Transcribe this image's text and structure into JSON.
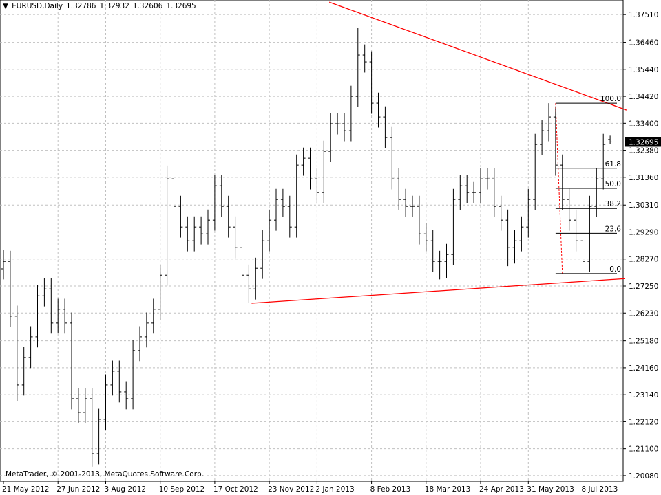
{
  "chart_data": {
    "type": "ohlc",
    "symbol": "EURUSD,Daily",
    "categories": [
      "21 May 2012",
      null,
      null,
      null,
      null,
      null,
      null,
      null,
      "27 Jun 2012",
      null,
      null,
      null,
      null,
      null,
      null,
      "3 Aug 2012",
      null,
      null,
      null,
      null,
      null,
      null,
      null,
      "10 Sep 2012",
      null,
      null,
      null,
      null,
      null,
      null,
      null,
      "17 Oct 2012",
      null,
      null,
      null,
      null,
      null,
      null,
      null,
      "23 Nov 2012",
      null,
      null,
      null,
      null,
      null,
      null,
      "2 Jan 2013",
      null,
      null,
      null,
      null,
      null,
      null,
      null,
      "8 Feb 2013",
      null,
      null,
      null,
      null,
      null,
      null,
      null,
      "18 Mar 2013",
      null,
      null,
      null,
      null,
      null,
      null,
      null,
      "24 Apr 2013",
      null,
      null,
      null,
      null,
      null,
      null,
      "31 May 2013",
      null,
      null,
      null,
      null,
      null,
      null,
      null,
      "8 Jul 2013",
      null,
      null,
      null,
      null
    ],
    "bars": [
      [
        1.279,
        1.286,
        1.275,
        1.2818
      ],
      [
        1.2818,
        1.2858,
        1.2571,
        1.2611
      ],
      [
        1.2611,
        1.2651,
        1.229,
        1.2351
      ],
      [
        1.2351,
        1.2495,
        1.2311,
        1.2455
      ],
      [
        1.2455,
        1.2573,
        1.2415,
        1.2533
      ],
      [
        1.2533,
        1.2728,
        1.2493,
        1.2688
      ],
      [
        1.2688,
        1.2754,
        1.2648,
        1.2714
      ],
      [
        1.2714,
        1.2754,
        1.2545,
        1.2585
      ],
      [
        1.2585,
        1.2677,
        1.2545,
        1.2637
      ],
      [
        1.2637,
        1.2677,
        1.2545,
        1.2585
      ],
      [
        1.2585,
        1.2625,
        1.2259,
        1.2299
      ],
      [
        1.2299,
        1.2339,
        1.2207,
        1.2247
      ],
      [
        1.2247,
        1.2339,
        1.2207,
        1.2299
      ],
      [
        1.2299,
        1.2339,
        1.2042,
        1.2091
      ],
      [
        1.2091,
        1.2261,
        1.2051,
        1.2221
      ],
      [
        1.2221,
        1.2391,
        1.2181,
        1.2351
      ],
      [
        1.2351,
        1.2443,
        1.2311,
        1.2403
      ],
      [
        1.2403,
        1.2443,
        1.2285,
        1.2325
      ],
      [
        1.2325,
        1.2365,
        1.2259,
        1.2299
      ],
      [
        1.2299,
        1.2521,
        1.2259,
        1.2481
      ],
      [
        1.2481,
        1.2573,
        1.2441,
        1.2533
      ],
      [
        1.2533,
        1.2625,
        1.2493,
        1.2585
      ],
      [
        1.2585,
        1.2677,
        1.2545,
        1.2637
      ],
      [
        1.2637,
        1.2806,
        1.2597,
        1.2766
      ],
      [
        1.2766,
        1.318,
        1.2726,
        1.313
      ],
      [
        1.313,
        1.317,
        1.2986,
        1.3026
      ],
      [
        1.3026,
        1.3066,
        1.2908,
        1.2948
      ],
      [
        1.2948,
        1.2988,
        1.2856,
        1.2896
      ],
      [
        1.2896,
        1.2988,
        1.2856,
        1.2948
      ],
      [
        1.2948,
        1.2988,
        1.2882,
        1.2922
      ],
      [
        1.2922,
        1.3014,
        1.2882,
        1.2974
      ],
      [
        1.2974,
        1.3144,
        1.2934,
        1.3104
      ],
      [
        1.3104,
        1.3144,
        1.2986,
        1.3026
      ],
      [
        1.3026,
        1.3066,
        1.2908,
        1.2948
      ],
      [
        1.2948,
        1.2988,
        1.283,
        1.287
      ],
      [
        1.287,
        1.291,
        1.2726,
        1.2766
      ],
      [
        1.2766,
        1.2806,
        1.266,
        1.2714
      ],
      [
        1.2714,
        1.2832,
        1.2674,
        1.2792
      ],
      [
        1.2792,
        1.2936,
        1.2752,
        1.2896
      ],
      [
        1.2896,
        1.3014,
        1.2856,
        1.2974
      ],
      [
        1.2974,
        1.3092,
        1.2934,
        1.3052
      ],
      [
        1.3052,
        1.3092,
        1.2986,
        1.3026
      ],
      [
        1.3026,
        1.3066,
        1.2908,
        1.2948
      ],
      [
        1.2948,
        1.3222,
        1.2908,
        1.3182
      ],
      [
        1.3182,
        1.3248,
        1.3142,
        1.3208
      ],
      [
        1.3208,
        1.3248,
        1.309,
        1.313
      ],
      [
        1.313,
        1.317,
        1.3038,
        1.3078
      ],
      [
        1.3078,
        1.3274,
        1.3038,
        1.3234
      ],
      [
        1.3234,
        1.3378,
        1.3194,
        1.3338
      ],
      [
        1.3338,
        1.3378,
        1.3298,
        1.3338
      ],
      [
        1.3338,
        1.3378,
        1.3272,
        1.3312
      ],
      [
        1.3312,
        1.3482,
        1.3272,
        1.3442
      ],
      [
        1.3442,
        1.3702,
        1.3402,
        1.3598
      ],
      [
        1.3598,
        1.3638,
        1.3532,
        1.3572
      ],
      [
        1.3572,
        1.3612,
        1.3376,
        1.3416
      ],
      [
        1.3416,
        1.3456,
        1.3324,
        1.3364
      ],
      [
        1.3364,
        1.3404,
        1.3246,
        1.3286
      ],
      [
        1.3286,
        1.3326,
        1.309,
        1.313
      ],
      [
        1.313,
        1.317,
        1.3012,
        1.3052
      ],
      [
        1.3052,
        1.3092,
        1.2986,
        1.3026
      ],
      [
        1.3026,
        1.3066,
        1.2986,
        1.3026
      ],
      [
        1.3026,
        1.3066,
        1.2882,
        1.2922
      ],
      [
        1.2922,
        1.2962,
        1.2856,
        1.2896
      ],
      [
        1.2896,
        1.2936,
        1.2778,
        1.2818
      ],
      [
        1.2818,
        1.2858,
        1.275,
        1.2818
      ],
      [
        1.2818,
        1.2884,
        1.2755,
        1.2844
      ],
      [
        1.2844,
        1.3092,
        1.2804,
        1.3052
      ],
      [
        1.3052,
        1.3144,
        1.3012,
        1.3104
      ],
      [
        1.3104,
        1.3144,
        1.3038,
        1.3078
      ],
      [
        1.3078,
        1.3118,
        1.3038,
        1.3078
      ],
      [
        1.3078,
        1.317,
        1.3038,
        1.313
      ],
      [
        1.313,
        1.317,
        1.309,
        1.313
      ],
      [
        1.313,
        1.317,
        1.2986,
        1.3026
      ],
      [
        1.3026,
        1.3066,
        1.2934,
        1.2974
      ],
      [
        1.2974,
        1.3014,
        1.28,
        1.287
      ],
      [
        1.287,
        1.2936,
        1.281,
        1.2896
      ],
      [
        1.2896,
        1.2988,
        1.2856,
        1.2948
      ],
      [
        1.2948,
        1.3092,
        1.2908,
        1.3052
      ],
      [
        1.3052,
        1.33,
        1.3012,
        1.326
      ],
      [
        1.326,
        1.3352,
        1.322,
        1.3312
      ],
      [
        1.3312,
        1.3416,
        1.3272,
        1.3364
      ],
      [
        1.3364,
        1.3404,
        1.3142,
        1.3182
      ],
      [
        1.3182,
        1.3222,
        1.3012,
        1.3052
      ],
      [
        1.3052,
        1.3092,
        1.2934,
        1.2974
      ],
      [
        1.2974,
        1.3014,
        1.2856,
        1.2896
      ],
      [
        1.2896,
        1.2936,
        1.2766,
        1.2818
      ],
      [
        1.2818,
        1.3066,
        1.2778,
        1.3026
      ],
      [
        1.3026,
        1.317,
        1.2986,
        1.313
      ],
      [
        1.313,
        1.33,
        1.309,
        1.326
      ],
      [
        1.32786,
        1.32932,
        1.32606,
        1.32695
      ]
    ],
    "color": "#000000",
    "ylim": [
      1.1987,
      1.3806
    ],
    "yticks": [
      {
        "value": 1.3751,
        "label": "1.37510"
      },
      {
        "value": 1.3646,
        "label": "1.36460"
      },
      {
        "value": 1.3544,
        "label": "1.35440"
      },
      {
        "value": 1.3442,
        "label": "1.34420"
      },
      {
        "value": 1.334,
        "label": "1.33400"
      },
      {
        "value": 1.3238,
        "label": "1.32380"
      },
      {
        "value": 1.3136,
        "label": "1.31360"
      },
      {
        "value": 1.3031,
        "label": "1.30310"
      },
      {
        "value": 1.2929,
        "label": "1.29290"
      },
      {
        "value": 1.2827,
        "label": "1.28270"
      },
      {
        "value": 1.2725,
        "label": "1.27250"
      },
      {
        "value": 1.2623,
        "label": "1.26230"
      },
      {
        "value": 1.2518,
        "label": "1.25180"
      },
      {
        "value": 1.2416,
        "label": "1.24160"
      },
      {
        "value": 1.2314,
        "label": "1.23140"
      },
      {
        "value": 1.2212,
        "label": "1.22120"
      },
      {
        "value": 1.211,
        "label": "1.21100"
      },
      {
        "value": 1.2008,
        "label": "1.20080"
      }
    ],
    "grid": true,
    "trendlines": [
      {
        "color": "#ff0000",
        "from": [
          47.8,
          1.3798
        ],
        "to": [
          91.4,
          1.339
        ]
      },
      {
        "color": "#ff0000",
        "from": [
          36.4,
          1.266
        ],
        "to": [
          91.2,
          1.2753
        ]
      }
    ],
    "fibonacci": {
      "high": 1.3416,
      "low": 1.2772,
      "from": 81,
      "to": 90,
      "color": "#000000",
      "base_color": "#ff0000",
      "levels": [
        {
          "value": 100,
          "label": "100.0"
        },
        {
          "value": 61.8,
          "label": "61.8"
        },
        {
          "value": 50,
          "label": "50.0"
        },
        {
          "value": 38.2,
          "label": "38.2"
        },
        {
          "value": 23.6,
          "label": "23.6"
        },
        {
          "value": 0,
          "label": "0.0"
        }
      ]
    },
    "watermark": "MetaTrader, © 2001-2013, MetaQuotes Software Corp."
  }
}
